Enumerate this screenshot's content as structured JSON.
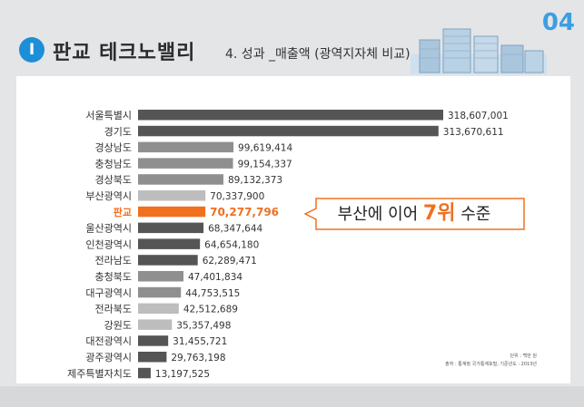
{
  "header": {
    "badge": "I",
    "title": "판교 테크노밸리",
    "subtitle": "4. 성과 _매출액 (광역지자체 비교)",
    "page_number": "04"
  },
  "callout": {
    "text_before": "부산에 이어 ",
    "rank": "7위",
    "text_after": " 수준"
  },
  "notes": {
    "unit": "단위 : 백만 원",
    "source": "출처 : 통계청 국가통계포털, 기준년도 : 2013년"
  },
  "colors": {
    "highlight": "#f07020",
    "accent": "#1c8fd8"
  },
  "chart_data": {
    "type": "bar",
    "orientation": "horizontal",
    "categories": [
      "서울특별시",
      "경기도",
      "경상남도",
      "충청남도",
      "경상북도",
      "부산광역시",
      "판교",
      "울산광역시",
      "인천광역시",
      "전라남도",
      "충청북도",
      "대구광역시",
      "전라북도",
      "강원도",
      "대전광역시",
      "광주광역시",
      "제주특별자치도"
    ],
    "values": [
      318607001,
      313670611,
      99619414,
      99154337,
      89132373,
      70337900,
      70277796,
      68347644,
      64654180,
      62289471,
      47401834,
      44753515,
      42512689,
      35357498,
      31455721,
      29763198,
      13197525
    ],
    "labels": [
      "318,607,001",
      "313,670,611",
      "99,619,414",
      "99,154,337",
      "89,132,373",
      "70,337,900",
      "70,277,796",
      "68,347,644",
      "64,654,180",
      "62,289,471",
      "47,401,834",
      "44,753,515",
      "42,512,689",
      "35,357,498",
      "31,455,721",
      "29,763,198",
      "13,197,525"
    ],
    "bar_colors": [
      "#555555",
      "#555555",
      "#8f8f8f",
      "#8f8f8f",
      "#8f8f8f",
      "#bdbdbd",
      "#f07020",
      "#555555",
      "#555555",
      "#555555",
      "#8f8f8f",
      "#8f8f8f",
      "#bdbdbd",
      "#bdbdbd",
      "#555555",
      "#555555",
      "#555555"
    ],
    "highlight_index": 6,
    "xlim": [
      0,
      318607001
    ]
  }
}
